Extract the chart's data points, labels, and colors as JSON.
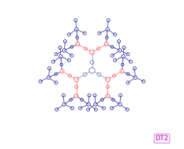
{
  "background_color": "#ffffff",
  "core_color": "#9999cc",
  "linker1_color": "#ff8888",
  "linker2_color": "#ff8888",
  "outer_color": "#4444aa",
  "line_core": "#aaaadd",
  "line_linker": "#ff9999",
  "line_outer": "#4444aa",
  "label_text": "DT2",
  "label_color": "#cc66cc",
  "label_bg": "#ffeeff",
  "label_border": "#cc66cc",
  "figsize": [
    2.33,
    1.89
  ],
  "dpi": 100,
  "xlim": [
    -10,
    10
  ],
  "ylim": [
    -9,
    9
  ]
}
